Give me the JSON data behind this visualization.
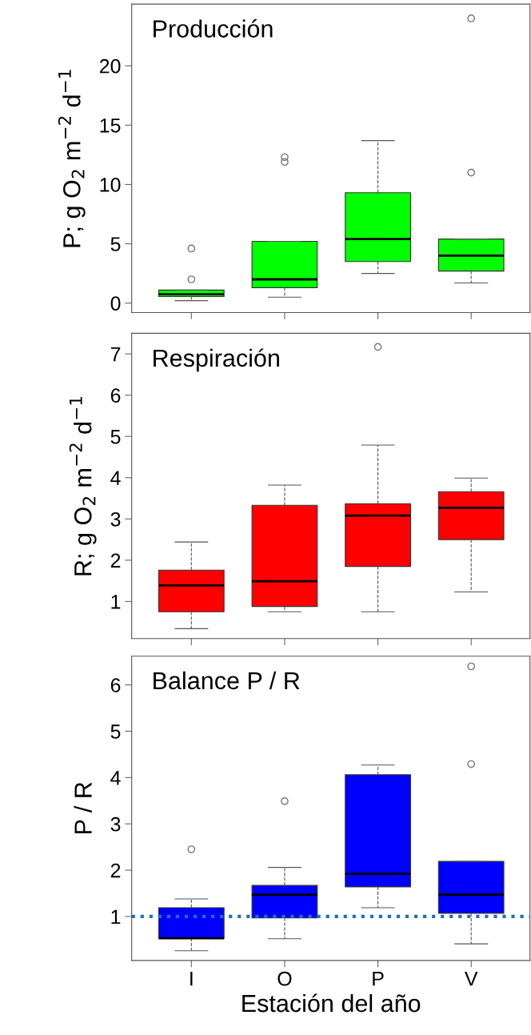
{
  "chart_data": [
    {
      "type": "box",
      "title": "Producción",
      "ylabel": "P; g O$_{2}$ m$^{−2}$ d$^{−1}$",
      "categories": [
        null,
        null,
        null,
        null
      ],
      "tick_labels": "y",
      "ylim": [
        -0.8,
        25.2
      ],
      "yticks": [
        0,
        5,
        10,
        15,
        20
      ],
      "grid": false,
      "series": [
        {
          "color": "#00ff00",
          "boxes": [
            {
              "low": 0.2,
              "q1": 0.55,
              "median": 0.75,
              "q3": 1.1,
              "high": 1.1,
              "outliers": [
                2.0,
                4.6
              ]
            },
            {
              "low": 0.5,
              "q1": 1.3,
              "median": 2.0,
              "q3": 5.2,
              "high": 5.2,
              "outliers": [
                11.9,
                12.3
              ]
            },
            {
              "low": 2.5,
              "q1": 3.5,
              "median": 5.4,
              "q3": 9.3,
              "high": 13.7
            },
            {
              "low": 1.7,
              "q1": 2.7,
              "median": 4.0,
              "q3": 5.4,
              "high": 5.4,
              "outliers": [
                11.0,
                24.0
              ]
            }
          ]
        }
      ]
    },
    {
      "type": "box",
      "title": "Respiración",
      "ylabel": "R; g O$_{2}$ m$^{−2}$ d$^{−1}$",
      "categories": [
        null,
        null,
        null,
        null
      ],
      "tick_labels": "y",
      "ylim": [
        0.1,
        7.5
      ],
      "yticks": [
        1,
        2,
        3,
        4,
        5,
        6,
        7
      ],
      "grid": false,
      "series": [
        {
          "color": "#ff0000",
          "boxes": [
            {
              "low": 0.34,
              "q1": 0.75,
              "median": 1.39,
              "q3": 1.76,
              "high": 2.44
            },
            {
              "low": 0.75,
              "q1": 0.88,
              "median": 1.49,
              "q3": 3.33,
              "high": 3.82
            },
            {
              "low": 0.75,
              "q1": 1.85,
              "median": 3.08,
              "q3": 3.37,
              "high": 4.79,
              "outliers": [
                7.17
              ]
            },
            {
              "low": 1.23,
              "q1": 2.5,
              "median": 3.27,
              "q3": 3.66,
              "high": 3.99
            }
          ]
        }
      ]
    },
    {
      "type": "box",
      "title": "Balance P / R",
      "ylabel": "P / R",
      "xlabel": "Estación del año",
      "categories": [
        "I",
        "O",
        "P",
        "V"
      ],
      "ylim": [
        0.05,
        6.62
      ],
      "yticks": [
        1,
        2,
        3,
        4,
        5,
        6
      ],
      "grid": false,
      "ref_lines": [
        {
          "axis": "y",
          "value": 1,
          "color": "#1f6fbf",
          "line_style": "dotted"
        }
      ],
      "series": [
        {
          "color": "#0000ff",
          "boxes": [
            {
              "low": 0.26,
              "q1": 0.53,
              "median": 0.53,
              "q3": 1.19,
              "high": 1.38,
              "outliers": [
                2.45
              ]
            },
            {
              "low": 0.52,
              "q1": 0.97,
              "median": 1.47,
              "q3": 1.67,
              "high": 2.06,
              "outliers": [
                3.49
              ]
            },
            {
              "low": 1.19,
              "q1": 1.64,
              "median": 1.92,
              "q3": 4.06,
              "high": 4.27
            },
            {
              "low": 0.41,
              "q1": 1.07,
              "median": 1.47,
              "q3": 2.19,
              "high": 2.19,
              "outliers": [
                4.29,
                6.4
              ]
            }
          ]
        }
      ]
    }
  ]
}
